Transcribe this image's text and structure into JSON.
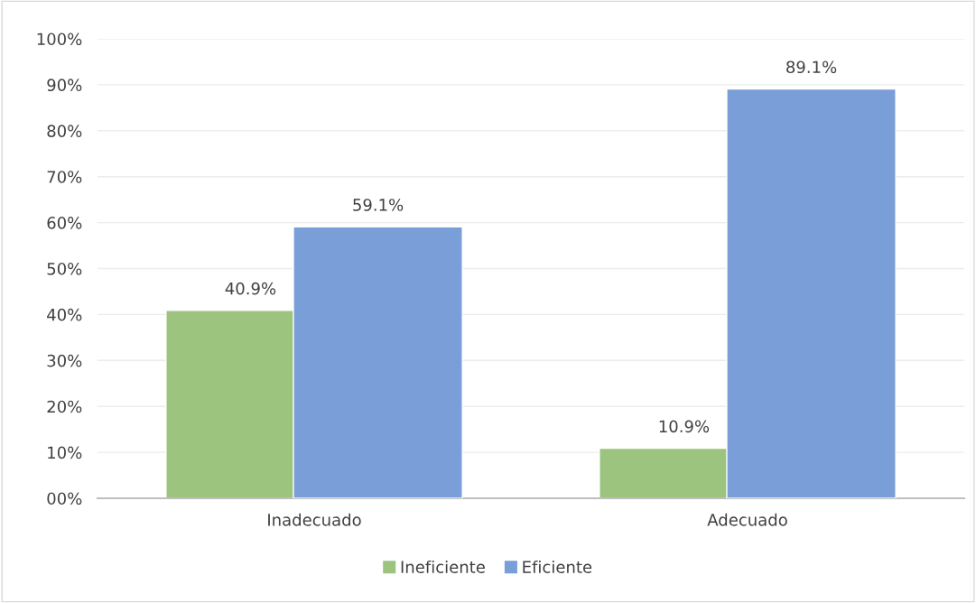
{
  "chart_data": {
    "type": "bar",
    "categories": [
      "Inadecuado",
      "Adecuado"
    ],
    "series": [
      {
        "name": "Ineficiente",
        "color": "#9cc47e",
        "values": [
          40.9,
          10.9
        ],
        "value_labels": [
          "40.9%",
          "10.9%"
        ]
      },
      {
        "name": "Eficiente",
        "color": "#7a9ed8",
        "values": [
          59.1,
          89.1
        ],
        "value_labels": [
          "59.1%",
          "89.1%"
        ]
      }
    ],
    "ylim": [
      0,
      100
    ],
    "yticks": [
      {
        "value": 0,
        "label": "00%"
      },
      {
        "value": 10,
        "label": "10%"
      },
      {
        "value": 20,
        "label": "20%"
      },
      {
        "value": 30,
        "label": "30%"
      },
      {
        "value": 40,
        "label": "40%"
      },
      {
        "value": 50,
        "label": "50%"
      },
      {
        "value": 60,
        "label": "60%"
      },
      {
        "value": 70,
        "label": "70%"
      },
      {
        "value": 80,
        "label": "80%"
      },
      {
        "value": 90,
        "label": "90%"
      },
      {
        "value": 100,
        "label": "100%"
      }
    ],
    "grid": "y",
    "legend": "bottom"
  }
}
